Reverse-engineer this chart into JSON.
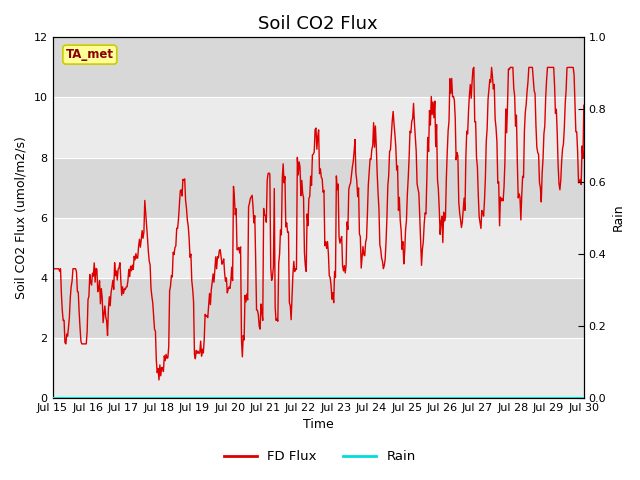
{
  "title": "Soil CO2 Flux",
  "xlabel": "Time",
  "ylabel_left": "Soil CO2 Flux (umol/m2/s)",
  "ylabel_right": "Rain",
  "xlim": [
    0,
    15
  ],
  "ylim_left": [
    0,
    12
  ],
  "ylim_right": [
    0,
    1.0
  ],
  "yticks_left": [
    0,
    2,
    4,
    6,
    8,
    10,
    12
  ],
  "yticks_right": [
    0.0,
    0.2,
    0.4,
    0.6,
    0.8,
    1.0
  ],
  "xtick_labels": [
    "Jul 15",
    "Jul 16",
    "Jul 17",
    "Jul 18",
    "Jul 19",
    "Jul 20",
    "Jul 21",
    "Jul 22",
    "Jul 23",
    "Jul 24",
    "Jul 25",
    "Jul 26",
    "Jul 27",
    "Jul 28",
    "Jul 29",
    "Jul 30"
  ],
  "flux_color": "#dd0000",
  "rain_color": "#00dddd",
  "bg_color_light": "#ebebeb",
  "bg_color_dark": "#d8d8d8",
  "ta_met_box_color": "#ffff99",
  "ta_met_text_color": "#8b0000",
  "ta_met_edge_color": "#cccc00",
  "legend_flux_label": "FD Flux",
  "legend_rain_label": "Rain",
  "annotation_label": "TA_met",
  "title_fontsize": 13,
  "axis_fontsize": 9,
  "tick_fontsize": 8
}
